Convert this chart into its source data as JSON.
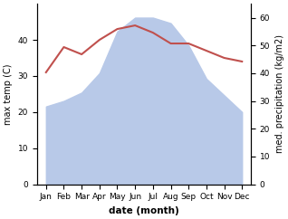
{
  "months": [
    "Jan",
    "Feb",
    "Mar",
    "Apr",
    "May",
    "Jun",
    "Jul",
    "Aug",
    "Sep",
    "Oct",
    "Nov",
    "Dec"
  ],
  "temp": [
    31,
    38,
    36,
    40,
    43,
    44,
    42,
    39,
    39,
    37,
    35,
    34
  ],
  "precip": [
    28,
    30,
    33,
    40,
    55,
    60,
    60,
    58,
    50,
    38,
    32,
    26
  ],
  "temp_color": "#c0504d",
  "precip_color": "#b8c9e8",
  "left_ylim": [
    0,
    50
  ],
  "left_yticks": [
    0,
    10,
    20,
    30,
    40
  ],
  "right_ylim": [
    0,
    65
  ],
  "right_yticks": [
    0,
    10,
    20,
    30,
    40,
    50,
    60
  ],
  "xlabel": "date (month)",
  "ylabel_left": "max temp (C)",
  "ylabel_right": "med. precipitation (kg/m2)",
  "axis_fontsize": 7,
  "tick_fontsize": 6.5,
  "xlabel_fontsize": 7.5
}
